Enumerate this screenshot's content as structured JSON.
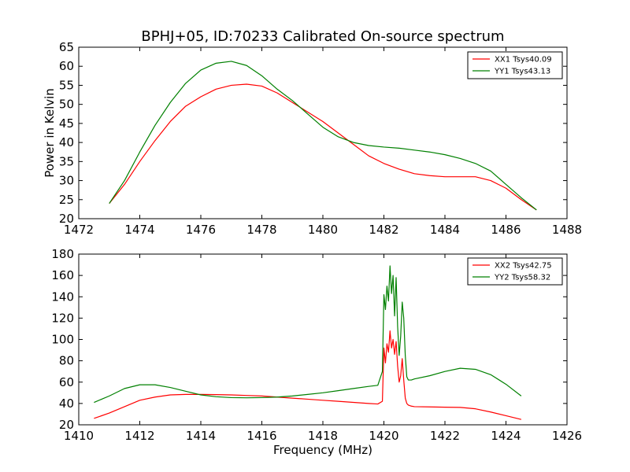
{
  "chart_data": [
    {
      "type": "line",
      "title": "BPHJ+05, ID:70233 Calibrated On-source spectrum",
      "xlabel": "",
      "ylabel": "Power in Kelvin",
      "xlim": [
        1472,
        1488
      ],
      "ylim": [
        20,
        65
      ],
      "xticks": [
        1472,
        1474,
        1476,
        1478,
        1480,
        1482,
        1484,
        1486,
        1488
      ],
      "yticks": [
        20,
        25,
        30,
        35,
        40,
        45,
        50,
        55,
        60,
        65
      ],
      "legend_position": "top-right",
      "series": [
        {
          "name": "XX1 Tsys40.09",
          "color": "#ff0000",
          "x": [
            1473.0,
            1473.5,
            1474.0,
            1474.5,
            1475.0,
            1475.5,
            1476.0,
            1476.5,
            1477.0,
            1477.5,
            1478.0,
            1478.5,
            1479.0,
            1479.5,
            1480.0,
            1480.5,
            1481.0,
            1481.5,
            1482.0,
            1482.5,
            1483.0,
            1483.5,
            1484.0,
            1484.5,
            1485.0,
            1485.5,
            1486.0,
            1486.5,
            1487.0
          ],
          "y": [
            24.0,
            29.0,
            35.0,
            40.5,
            45.5,
            49.5,
            52.0,
            54.0,
            55.0,
            55.3,
            54.8,
            53.0,
            50.5,
            48.0,
            45.5,
            42.5,
            39.5,
            36.5,
            34.5,
            33.0,
            31.8,
            31.3,
            31.0,
            31.0,
            31.0,
            30.0,
            28.0,
            25.0,
            22.3
          ]
        },
        {
          "name": "YY1 Tsys43.13",
          "color": "#008000",
          "x": [
            1473.0,
            1473.5,
            1474.0,
            1474.5,
            1475.0,
            1475.5,
            1476.0,
            1476.5,
            1477.0,
            1477.5,
            1478.0,
            1478.5,
            1479.0,
            1479.5,
            1480.0,
            1480.5,
            1481.0,
            1481.5,
            1482.0,
            1482.5,
            1483.0,
            1483.5,
            1484.0,
            1484.5,
            1485.0,
            1485.5,
            1486.0,
            1486.5,
            1487.0
          ],
          "y": [
            24.0,
            30.0,
            37.5,
            44.5,
            50.5,
            55.5,
            59.0,
            60.8,
            61.3,
            60.2,
            57.5,
            54.0,
            51.0,
            47.5,
            44.0,
            41.5,
            40.0,
            39.2,
            38.8,
            38.5,
            38.0,
            37.5,
            36.8,
            35.8,
            34.5,
            32.5,
            29.0,
            25.5,
            22.3
          ]
        }
      ]
    },
    {
      "type": "line",
      "title": "",
      "xlabel": "Frequency (MHz)",
      "ylabel": "",
      "xlim": [
        1410,
        1426
      ],
      "ylim": [
        20,
        180
      ],
      "xticks": [
        1410,
        1412,
        1414,
        1416,
        1418,
        1420,
        1422,
        1424,
        1426
      ],
      "yticks": [
        20,
        40,
        60,
        80,
        100,
        120,
        140,
        160,
        180
      ],
      "legend_position": "top-right",
      "series": [
        {
          "name": "XX2 Tsys42.75",
          "color": "#ff0000",
          "x": [
            1410.5,
            1411.0,
            1411.5,
            1412.0,
            1412.5,
            1413.0,
            1413.5,
            1414.0,
            1414.5,
            1415.0,
            1415.5,
            1416.0,
            1416.5,
            1417.0,
            1417.5,
            1418.0,
            1418.5,
            1419.0,
            1419.5,
            1419.8,
            1419.95,
            1420.0,
            1420.05,
            1420.1,
            1420.15,
            1420.2,
            1420.25,
            1420.3,
            1420.35,
            1420.4,
            1420.45,
            1420.5,
            1420.55,
            1420.6,
            1420.65,
            1420.7,
            1420.75,
            1420.8,
            1420.9,
            1421.0,
            1421.5,
            1422.0,
            1422.5,
            1423.0,
            1423.5,
            1424.0,
            1424.5
          ],
          "y": [
            26,
            31,
            37,
            43,
            46,
            48,
            48.5,
            48.5,
            48.3,
            48,
            47.5,
            47,
            46,
            45,
            44,
            43,
            42,
            41,
            40,
            39.5,
            42,
            92,
            78,
            96,
            88,
            108,
            92,
            100,
            86,
            98,
            75,
            60,
            66,
            82,
            62,
            45,
            40,
            38.5,
            37.5,
            37,
            36.8,
            36.5,
            36.3,
            35,
            32,
            28.5,
            25
          ]
        },
        {
          "name": "YY2 Tsys58.32",
          "color": "#008000",
          "x": [
            1410.5,
            1411.0,
            1411.5,
            1412.0,
            1412.5,
            1413.0,
            1413.5,
            1414.0,
            1414.5,
            1415.0,
            1415.5,
            1416.0,
            1416.5,
            1417.0,
            1417.5,
            1418.0,
            1418.5,
            1419.0,
            1419.5,
            1419.8,
            1419.95,
            1420.0,
            1420.05,
            1420.1,
            1420.15,
            1420.2,
            1420.25,
            1420.3,
            1420.35,
            1420.4,
            1420.45,
            1420.5,
            1420.55,
            1420.6,
            1420.65,
            1420.7,
            1420.75,
            1420.8,
            1420.9,
            1421.0,
            1421.5,
            1422.0,
            1422.5,
            1423.0,
            1423.5,
            1424.0,
            1424.5
          ],
          "y": [
            41,
            47,
            54,
            57.5,
            57.5,
            55,
            51.5,
            48,
            46.3,
            45.5,
            45.3,
            45.5,
            46,
            47,
            48.5,
            50,
            52,
            54,
            56,
            57,
            70,
            142,
            128,
            150,
            136,
            169,
            143,
            160,
            122,
            158,
            112,
            85,
            103,
            135,
            120,
            85,
            65,
            62,
            62,
            63,
            66,
            70,
            73,
            72,
            67,
            58,
            47
          ]
        }
      ]
    }
  ]
}
